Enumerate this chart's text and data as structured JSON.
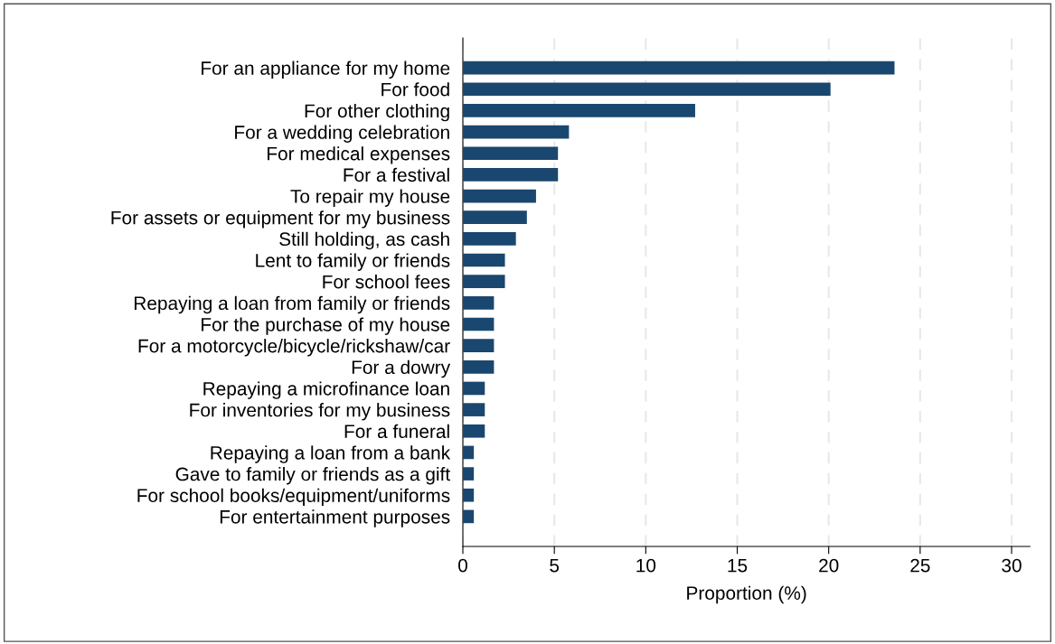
{
  "chart_data": {
    "type": "bar",
    "orientation": "horizontal",
    "xlabel": "Proportion (%)",
    "categories": [
      "For an appliance for my home",
      "For food",
      "For other clothing",
      "For a wedding celebration",
      "For medical expenses",
      "For a festival",
      "To repair my house",
      "For assets or equipment for my business",
      "Still holding, as cash",
      "Lent to family or friends",
      "For school fees",
      "Repaying a loan from family or friends",
      "For the purchase of my house",
      "For a motorcycle/bicycle/rickshaw/car",
      "For a dowry",
      "Repaying a microfinance loan",
      "For inventories for my business",
      "For a funeral",
      "Repaying a loan from a bank",
      "Gave to family or friends as a gift",
      "For school books/equipment/uniforms",
      "For entertainment purposes"
    ],
    "values": [
      23.6,
      20.1,
      12.7,
      5.8,
      5.2,
      5.2,
      4.0,
      3.5,
      2.9,
      2.3,
      2.3,
      1.7,
      1.7,
      1.7,
      1.7,
      1.2,
      1.2,
      1.2,
      0.6,
      0.6,
      0.6,
      0.6
    ],
    "color": "#1a476f",
    "xlim": [
      0,
      31
    ],
    "xticks": [
      0,
      5,
      10,
      15,
      20,
      25,
      30
    ],
    "grid": "x"
  }
}
